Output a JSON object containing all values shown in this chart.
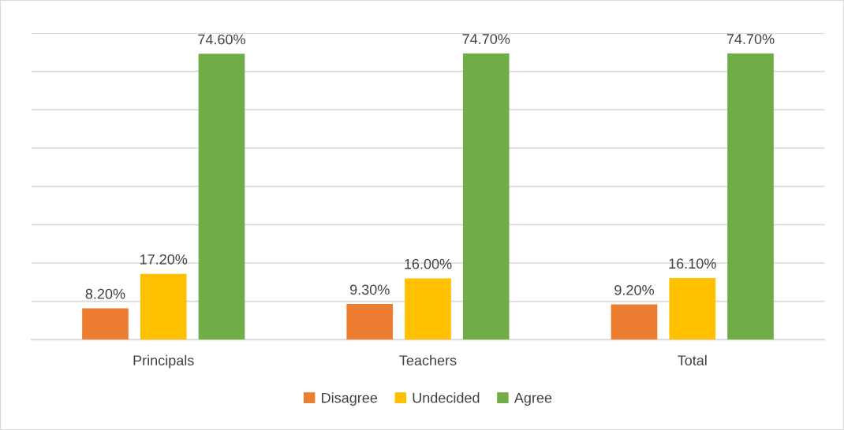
{
  "chart_data": {
    "type": "bar",
    "categories": [
      "Principals",
      "Teachers",
      "Total"
    ],
    "series": [
      {
        "name": "Disagree",
        "color": "#ed7d31",
        "values": [
          8.2,
          9.3,
          9.2
        ],
        "value_labels": [
          "8.20%",
          "9.30%",
          "9.20%"
        ]
      },
      {
        "name": "Undecided",
        "color": "#ffc000",
        "values": [
          17.2,
          16.0,
          16.1
        ],
        "value_labels": [
          "17.20%",
          "16.00%",
          "16.10%"
        ]
      },
      {
        "name": "Agree",
        "color": "#70ad47",
        "values": [
          74.6,
          74.7,
          74.7
        ],
        "value_labels": [
          "74.60%",
          "74.70%",
          "74.70%"
        ]
      }
    ],
    "ylim": [
      0,
      80
    ],
    "yticks": [
      {
        "value": 0,
        "label": null
      },
      {
        "value": 10,
        "label": null
      },
      {
        "value": 20,
        "label": null
      },
      {
        "value": 30,
        "label": null
      },
      {
        "value": 40,
        "label": null
      },
      {
        "value": 50,
        "label": null
      },
      {
        "value": 60,
        "label": null
      },
      {
        "value": 70,
        "label": null
      },
      {
        "value": 80,
        "label": null
      }
    ],
    "tick_labels": "x",
    "grid": "y",
    "legend": "bottom"
  }
}
